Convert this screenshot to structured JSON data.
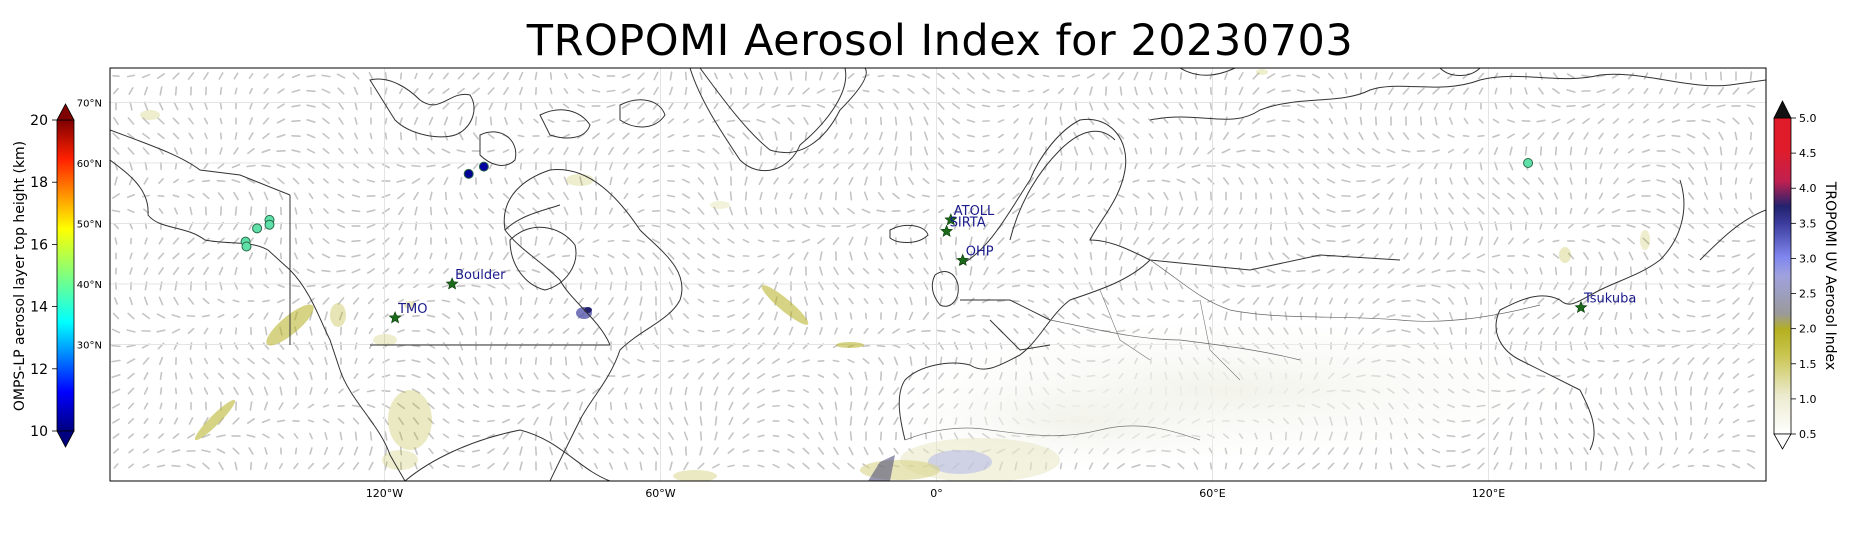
{
  "title": "TROPOMI Aerosol Index for 20230703",
  "map": {
    "lon_ticks": [
      {
        "lon": -120,
        "label": "120°W"
      },
      {
        "lon": -60,
        "label": "60°W"
      },
      {
        "lon": 0,
        "label": "0°"
      },
      {
        "lon": 60,
        "label": "60°E"
      },
      {
        "lon": 120,
        "label": "120°E"
      }
    ],
    "lat_labels": [
      {
        "lat": 70,
        "label": "70°N"
      },
      {
        "lat": 60,
        "label": "60°N"
      },
      {
        "lat": 50,
        "label": "50°N"
      },
      {
        "lat": 40,
        "label": "40°N"
      },
      {
        "lat": 30,
        "label": "30°N"
      }
    ],
    "sites": [
      {
        "name": "TMO",
        "lon": -117.7,
        "lat": 34.4
      },
      {
        "name": "Boulder",
        "lon": -105.3,
        "lat": 40.0
      },
      {
        "name": "ATOLL",
        "lon": 3.1,
        "lat": 50.6
      },
      {
        "name": "SIRTA",
        "lon": 2.2,
        "lat": 48.7
      },
      {
        "name": "OHP",
        "lon": 5.7,
        "lat": 43.9
      },
      {
        "name": "Tsukuba",
        "lon": 140.1,
        "lat": 36.1
      }
    ],
    "omps_points": [
      {
        "lon": -150.2,
        "lat": 47.0,
        "height_km": 13.4
      },
      {
        "lon": -150.0,
        "lat": 46.2,
        "height_km": 13.3
      },
      {
        "lon": -147.7,
        "lat": 49.2,
        "height_km": 13.2
      },
      {
        "lon": -145.0,
        "lat": 50.6,
        "height_km": 13.4
      },
      {
        "lon": -145.0,
        "lat": 49.8,
        "height_km": 13.3
      },
      {
        "lon": -101.7,
        "lat": 58.2,
        "height_km": 10.2
      },
      {
        "lon": -98.4,
        "lat": 59.4,
        "height_km": 10.3
      },
      {
        "lon": 128.6,
        "lat": 60.0,
        "height_km": 13.5
      }
    ]
  },
  "colorbar_left": {
    "label": "OMPS-LP aerosol layer top height (km)",
    "ticks": [
      "10",
      "12",
      "14",
      "16",
      "18",
      "20"
    ],
    "range": [
      10,
      20
    ],
    "colormap": "jet"
  },
  "colorbar_right": {
    "label": "TROPOMI UV Aerosol Index",
    "ticks": [
      "0.5",
      "1.0",
      "1.5",
      "2.0",
      "2.5",
      "3.0",
      "3.5",
      "4.0",
      "4.5",
      "5.0"
    ],
    "range": [
      0.5,
      5.0
    ],
    "colors": {
      "white": "#ffffff",
      "olive": "#b5b020",
      "gray": "#9a9a9a",
      "blue": "#7f86ee",
      "navy": "#22226e",
      "red": "#e01c2a",
      "black": "#111111"
    }
  }
}
